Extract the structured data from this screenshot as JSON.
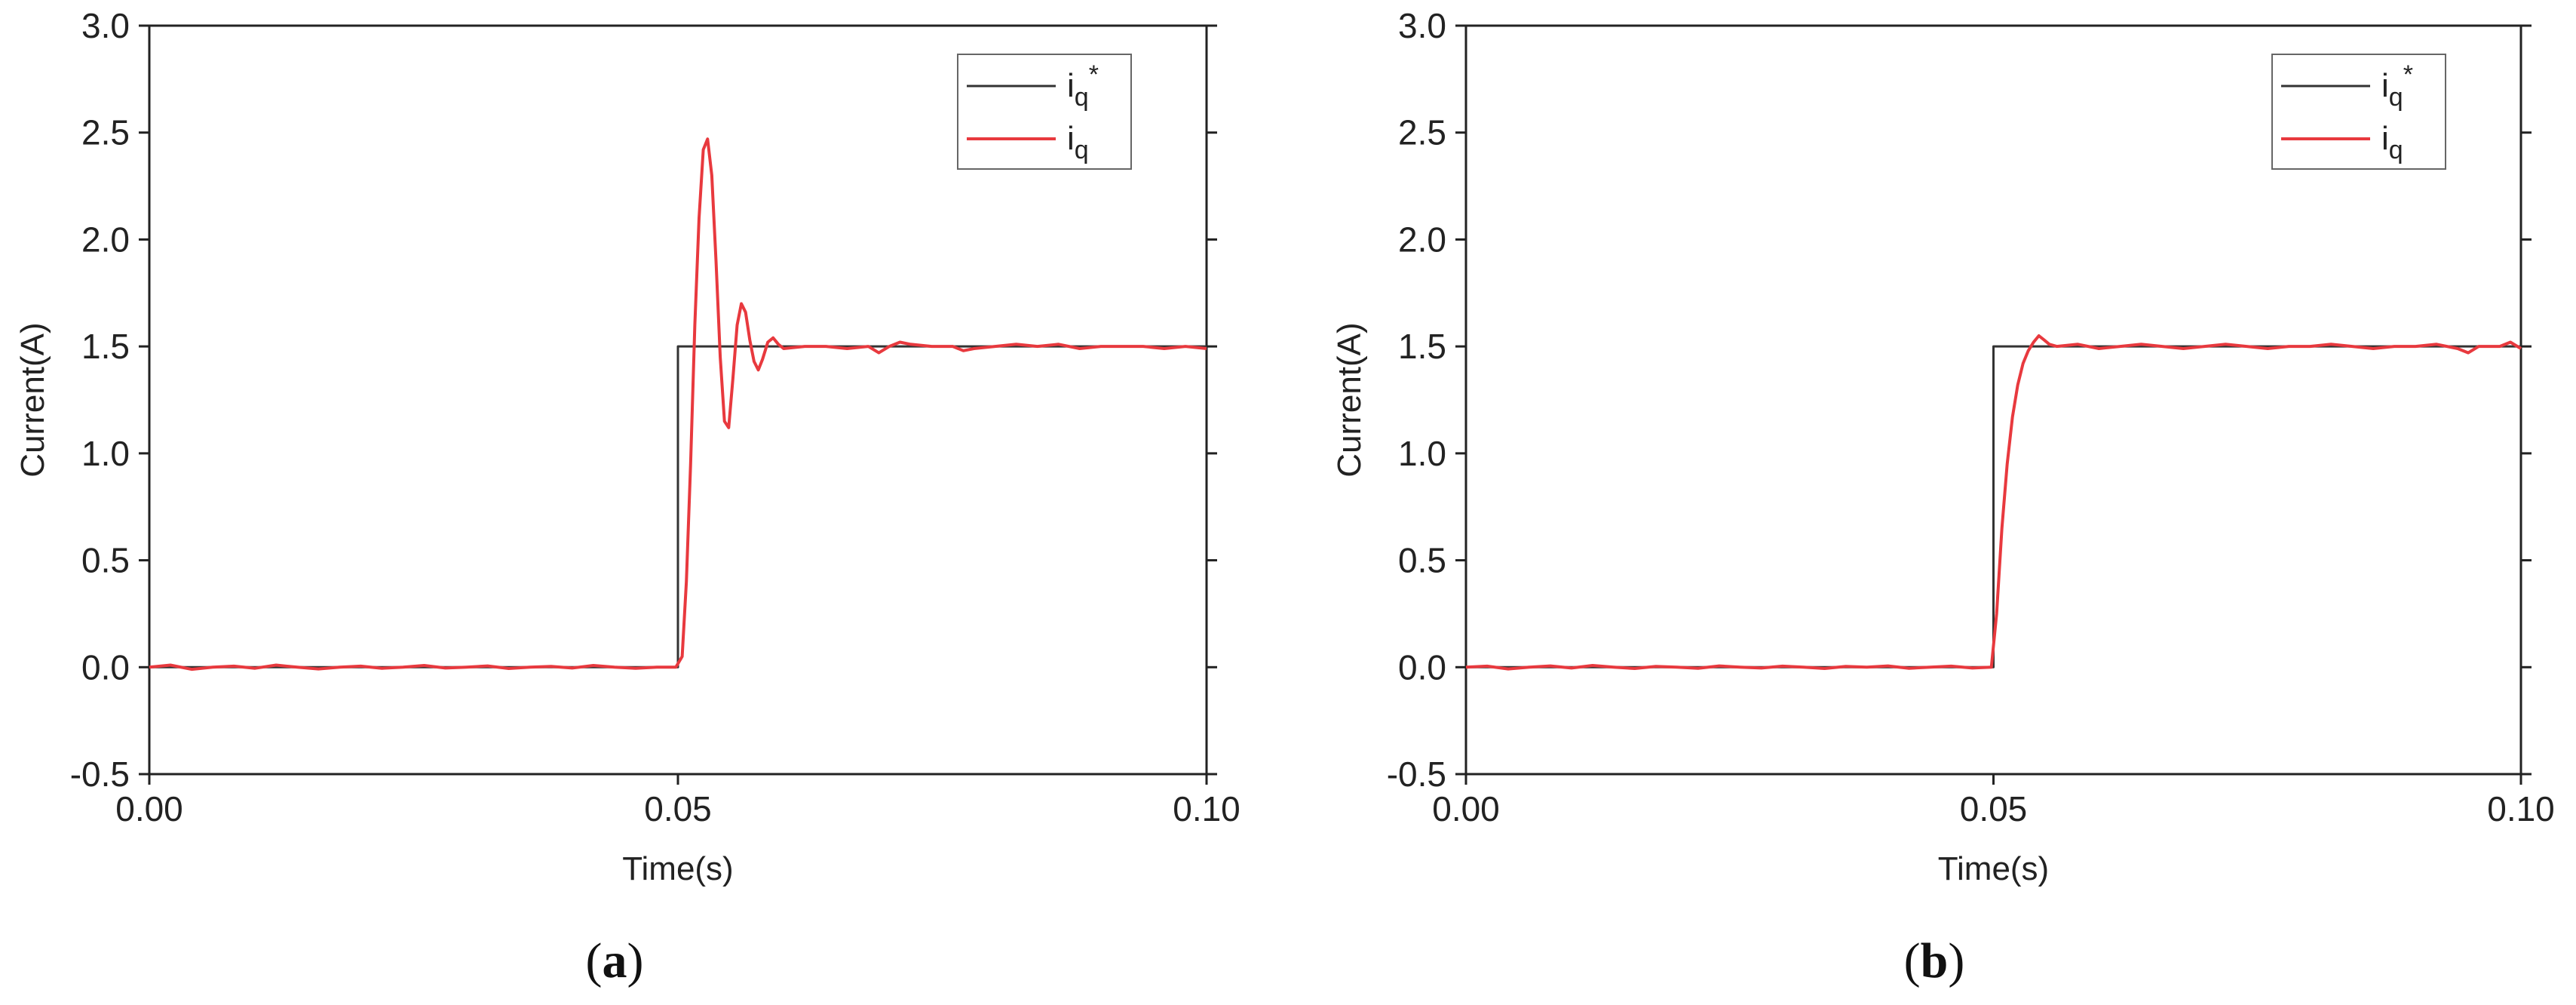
{
  "chart_data": [
    {
      "type": "line",
      "panel_label": "a",
      "xlabel": "Time(s)",
      "ylabel": "Current(A)",
      "xlim": [
        0.0,
        0.1
      ],
      "ylim": [
        -0.5,
        3.0
      ],
      "xticks": [
        "0.00",
        "0.05",
        "0.10"
      ],
      "xtick_values": [
        0.0,
        0.05,
        0.1
      ],
      "yticks": [
        "-0.5",
        "0.0",
        "0.5",
        "1.0",
        "1.5",
        "2.0",
        "2.5",
        "3.0"
      ],
      "ytick_values": [
        -0.5,
        0.0,
        0.5,
        1.0,
        1.5,
        2.0,
        2.5,
        3.0
      ],
      "legend_position": "top-right",
      "series": [
        {
          "name": "iq*",
          "color": "#333333",
          "x": [
            0.0,
            0.05,
            0.05,
            0.1
          ],
          "y": [
            0.0,
            0.0,
            1.5,
            1.5
          ]
        },
        {
          "name": "iq",
          "color": "#e8393e",
          "x": [
            0.0,
            0.002,
            0.004,
            0.006,
            0.008,
            0.01,
            0.012,
            0.014,
            0.016,
            0.018,
            0.02,
            0.022,
            0.024,
            0.026,
            0.028,
            0.03,
            0.032,
            0.034,
            0.036,
            0.038,
            0.04,
            0.042,
            0.044,
            0.046,
            0.048,
            0.0498,
            0.0504,
            0.0508,
            0.0512,
            0.0516,
            0.052,
            0.0524,
            0.0528,
            0.0532,
            0.0536,
            0.054,
            0.0544,
            0.0548,
            0.0552,
            0.0556,
            0.056,
            0.0564,
            0.0568,
            0.0572,
            0.0576,
            0.058,
            0.0585,
            0.059,
            0.0595,
            0.06,
            0.062,
            0.064,
            0.066,
            0.068,
            0.069,
            0.07,
            0.071,
            0.072,
            0.074,
            0.076,
            0.077,
            0.078,
            0.08,
            0.082,
            0.084,
            0.086,
            0.088,
            0.09,
            0.092,
            0.094,
            0.096,
            0.098,
            0.1
          ],
          "y": [
            0.0,
            0.01,
            -0.01,
            0.0,
            0.005,
            -0.005,
            0.01,
            0.0,
            -0.008,
            0.0,
            0.005,
            -0.005,
            0.0,
            0.008,
            -0.004,
            0.0,
            0.006,
            -0.006,
            0.0,
            0.004,
            -0.004,
            0.008,
            0.0,
            -0.005,
            0.0,
            0.0,
            0.05,
            0.4,
            0.95,
            1.6,
            2.1,
            2.42,
            2.47,
            2.3,
            1.9,
            1.45,
            1.15,
            1.12,
            1.35,
            1.6,
            1.7,
            1.66,
            1.53,
            1.43,
            1.39,
            1.44,
            1.52,
            1.54,
            1.51,
            1.49,
            1.5,
            1.5,
            1.49,
            1.5,
            1.47,
            1.5,
            1.52,
            1.51,
            1.5,
            1.5,
            1.48,
            1.49,
            1.5,
            1.51,
            1.5,
            1.51,
            1.49,
            1.5,
            1.5,
            1.5,
            1.49,
            1.5,
            1.49
          ]
        }
      ]
    },
    {
      "type": "line",
      "panel_label": "b",
      "xlabel": "Time(s)",
      "ylabel": "Current(A)",
      "xlim": [
        0.0,
        0.1
      ],
      "ylim": [
        -0.5,
        3.0
      ],
      "xticks": [
        "0.00",
        "0.05",
        "0.10"
      ],
      "xtick_values": [
        0.0,
        0.05,
        0.1
      ],
      "yticks": [
        "-0.5",
        "0.0",
        "0.5",
        "1.0",
        "1.5",
        "2.0",
        "2.5",
        "3.0"
      ],
      "ytick_values": [
        -0.5,
        0.0,
        0.5,
        1.0,
        1.5,
        2.0,
        2.5,
        3.0
      ],
      "legend_position": "top-right",
      "series": [
        {
          "name": "iq*",
          "color": "#333333",
          "x": [
            0.0,
            0.05,
            0.05,
            0.1
          ],
          "y": [
            0.0,
            0.0,
            1.5,
            1.5
          ]
        },
        {
          "name": "iq",
          "color": "#e8393e",
          "x": [
            0.0,
            0.002,
            0.004,
            0.006,
            0.008,
            0.01,
            0.012,
            0.014,
            0.016,
            0.018,
            0.02,
            0.022,
            0.024,
            0.026,
            0.028,
            0.03,
            0.032,
            0.034,
            0.036,
            0.038,
            0.04,
            0.042,
            0.044,
            0.046,
            0.048,
            0.0498,
            0.0503,
            0.0508,
            0.0513,
            0.0518,
            0.0523,
            0.0528,
            0.0533,
            0.0538,
            0.0543,
            0.0548,
            0.0553,
            0.056,
            0.058,
            0.06,
            0.062,
            0.064,
            0.066,
            0.068,
            0.07,
            0.072,
            0.074,
            0.076,
            0.078,
            0.08,
            0.082,
            0.084,
            0.086,
            0.088,
            0.09,
            0.092,
            0.094,
            0.095,
            0.096,
            0.098,
            0.099,
            0.1
          ],
          "y": [
            0.0,
            0.005,
            -0.008,
            0.0,
            0.006,
            -0.004,
            0.008,
            0.0,
            -0.006,
            0.004,
            0.0,
            -0.005,
            0.006,
            0.0,
            -0.004,
            0.005,
            0.0,
            -0.006,
            0.004,
            0.0,
            0.006,
            -0.005,
            0.0,
            0.005,
            -0.004,
            0.0,
            0.25,
            0.65,
            0.95,
            1.17,
            1.32,
            1.42,
            1.48,
            1.52,
            1.55,
            1.53,
            1.51,
            1.5,
            1.51,
            1.49,
            1.5,
            1.51,
            1.5,
            1.49,
            1.5,
            1.51,
            1.5,
            1.49,
            1.5,
            1.5,
            1.51,
            1.5,
            1.49,
            1.5,
            1.5,
            1.51,
            1.49,
            1.47,
            1.5,
            1.5,
            1.52,
            1.49
          ]
        }
      ]
    }
  ]
}
